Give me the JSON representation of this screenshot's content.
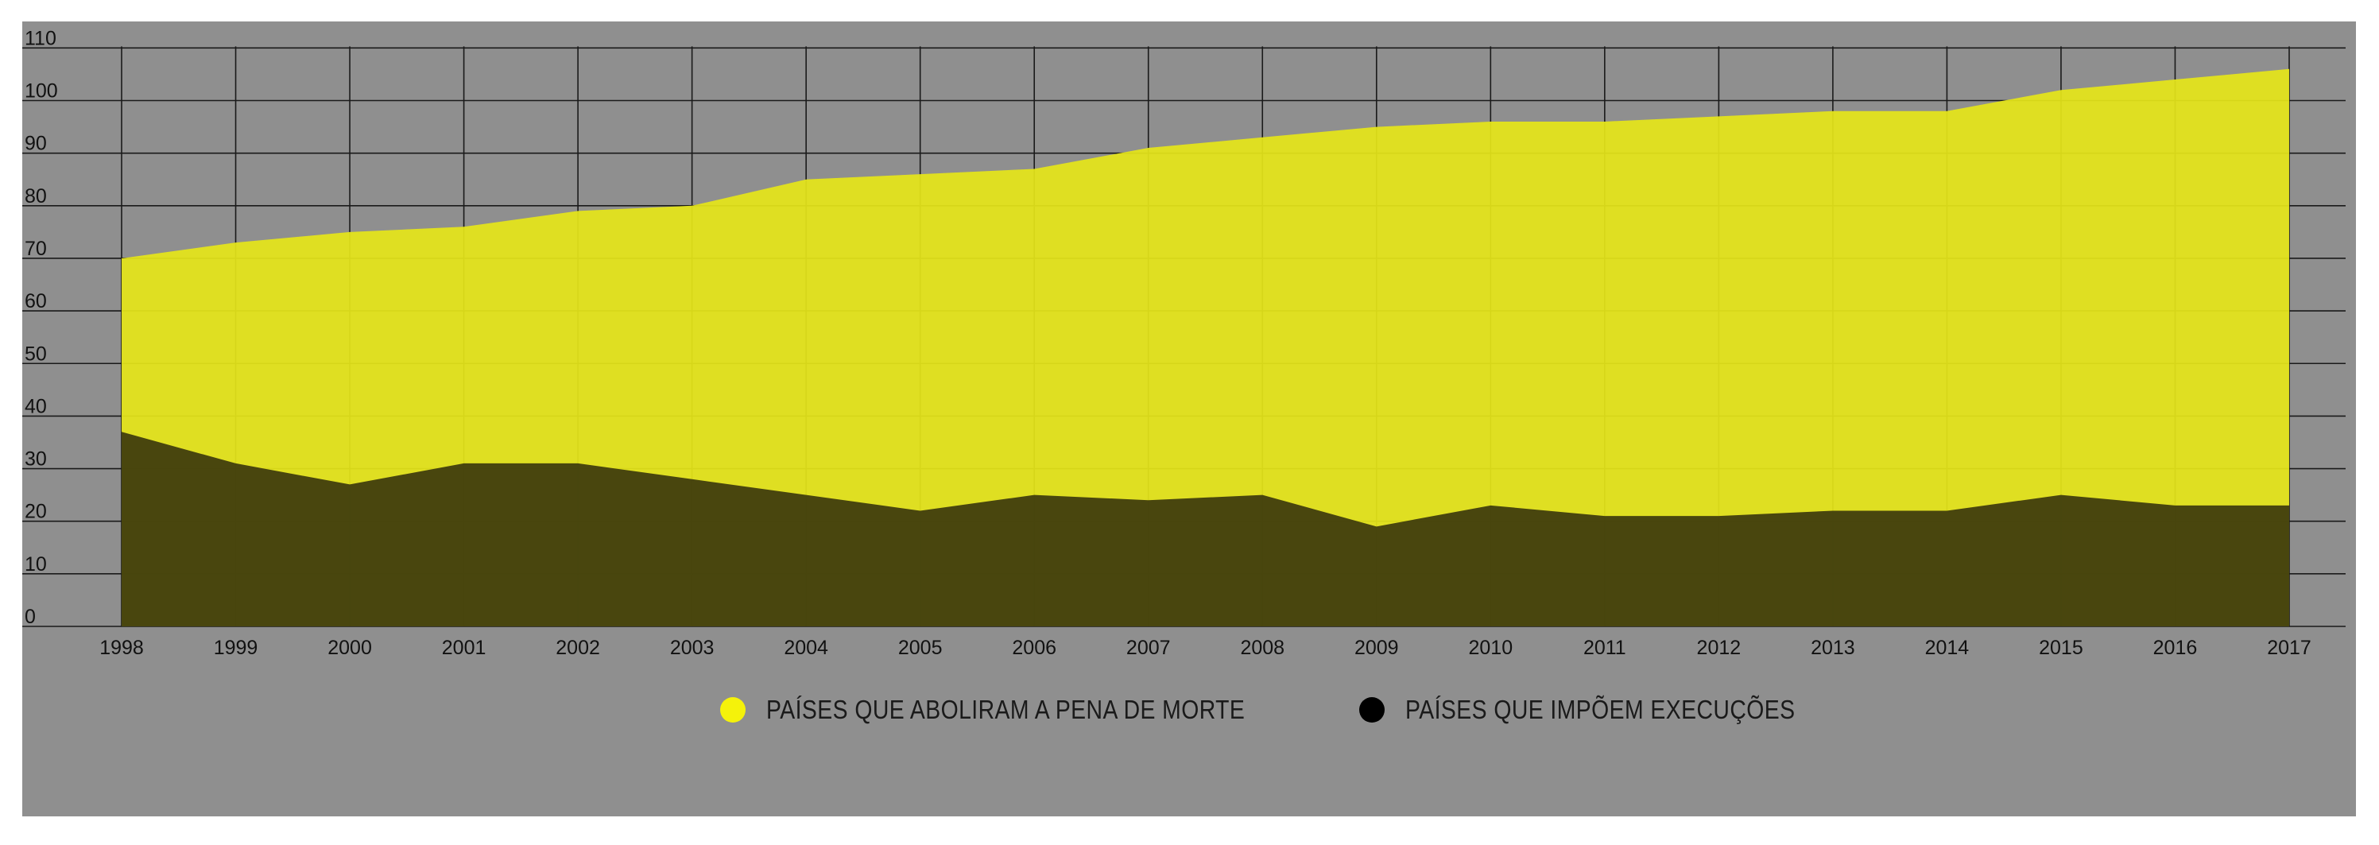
{
  "chart_data": {
    "type": "area",
    "title": "",
    "xlabel": "",
    "ylabel": "",
    "ylim": [
      0,
      110
    ],
    "yticks": [
      0,
      10,
      20,
      30,
      40,
      50,
      60,
      70,
      80,
      90,
      100,
      110
    ],
    "categories": [
      "1998",
      "1999",
      "2000",
      "2001",
      "2002",
      "2003",
      "2004",
      "2005",
      "2006",
      "2007",
      "2008",
      "2009",
      "2010",
      "2011",
      "2012",
      "2013",
      "2014",
      "2015",
      "2016",
      "2017"
    ],
    "grid": true,
    "legend_position": "bottom-center",
    "series": [
      {
        "name": "PAÍSES QUE ABOLIRAM A PENA DE MORTE",
        "color": "#e5e51a",
        "values": [
          70,
          73,
          75,
          76,
          79,
          80,
          85,
          86,
          87,
          91,
          93,
          95,
          96,
          96,
          97,
          98,
          98,
          102,
          104,
          106
        ]
      },
      {
        "name": "PAÍSES QUE IMPÕEM EXECUÇÕES",
        "color": "#3d3a0d",
        "values": [
          37,
          31,
          27,
          31,
          31,
          28,
          25,
          22,
          25,
          24,
          25,
          19,
          23,
          21,
          21,
          22,
          22,
          25,
          23,
          23
        ]
      }
    ]
  },
  "legend": {
    "dot_colors": [
      "#f5f20a",
      "#000000"
    ]
  },
  "colors": {
    "background": "#8f8f8f",
    "grid": "#1a1a1a",
    "abolished_area": "#e5e51a",
    "executing_area": "#3d3a0d"
  }
}
